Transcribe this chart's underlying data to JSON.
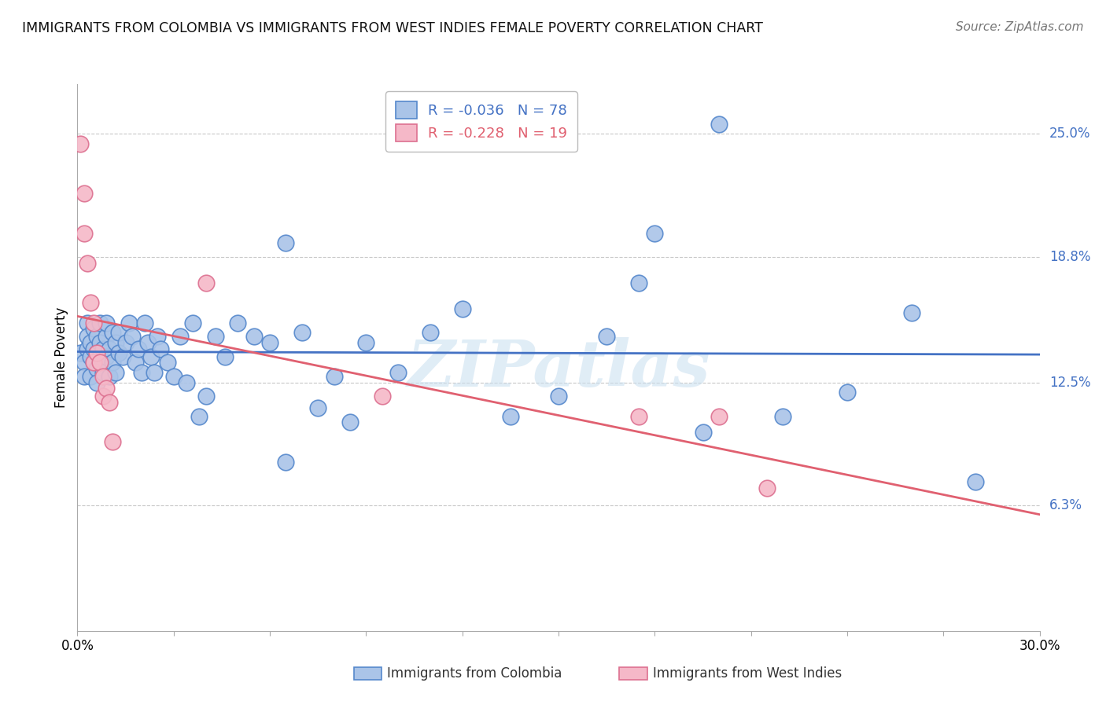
{
  "title": "IMMIGRANTS FROM COLOMBIA VS IMMIGRANTS FROM WEST INDIES FEMALE POVERTY CORRELATION CHART",
  "source": "Source: ZipAtlas.com",
  "ylabel": "Female Poverty",
  "xlim": [
    0.0,
    0.3
  ],
  "ylim": [
    0.0,
    0.275
  ],
  "ytick_right": [
    0.063,
    0.125,
    0.188,
    0.25
  ],
  "ytick_right_labels": [
    "6.3%",
    "12.5%",
    "18.8%",
    "25.0%"
  ],
  "grid_color": "#c8c8c8",
  "background_color": "#ffffff",
  "colombia_color": "#aac4e8",
  "westindies_color": "#f5b8c8",
  "colombia_edge_color": "#5588cc",
  "westindies_edge_color": "#dd7090",
  "colombia_line_color": "#4472c4",
  "westindies_line_color": "#e06070",
  "colombia_R": -0.036,
  "colombia_N": 78,
  "westindies_R": -0.228,
  "westindies_N": 19,
  "watermark": "ZIPatlas",
  "legend_label_colombia": "Immigrants from Colombia",
  "legend_label_westindies": "Immigrants from West Indies",
  "colombia_x": [
    0.001,
    0.002,
    0.002,
    0.003,
    0.003,
    0.003,
    0.004,
    0.004,
    0.004,
    0.005,
    0.005,
    0.005,
    0.006,
    0.006,
    0.006,
    0.006,
    0.007,
    0.007,
    0.007,
    0.008,
    0.008,
    0.009,
    0.009,
    0.009,
    0.01,
    0.01,
    0.011,
    0.011,
    0.012,
    0.012,
    0.013,
    0.013,
    0.014,
    0.015,
    0.016,
    0.017,
    0.018,
    0.019,
    0.02,
    0.021,
    0.022,
    0.023,
    0.024,
    0.025,
    0.026,
    0.028,
    0.03,
    0.032,
    0.034,
    0.036,
    0.038,
    0.04,
    0.043,
    0.046,
    0.05,
    0.055,
    0.06,
    0.065,
    0.07,
    0.075,
    0.08,
    0.09,
    0.1,
    0.11,
    0.12,
    0.135,
    0.15,
    0.165,
    0.18,
    0.2,
    0.22,
    0.24,
    0.26,
    0.28,
    0.175,
    0.195,
    0.085,
    0.065
  ],
  "colombia_y": [
    0.14,
    0.135,
    0.128,
    0.155,
    0.142,
    0.148,
    0.138,
    0.145,
    0.128,
    0.135,
    0.142,
    0.152,
    0.148,
    0.132,
    0.14,
    0.125,
    0.155,
    0.145,
    0.138,
    0.142,
    0.13,
    0.148,
    0.138,
    0.155,
    0.142,
    0.128,
    0.15,
    0.135,
    0.145,
    0.13,
    0.15,
    0.14,
    0.138,
    0.145,
    0.155,
    0.148,
    0.135,
    0.142,
    0.13,
    0.155,
    0.145,
    0.138,
    0.13,
    0.148,
    0.142,
    0.135,
    0.128,
    0.148,
    0.125,
    0.155,
    0.108,
    0.118,
    0.148,
    0.138,
    0.155,
    0.148,
    0.145,
    0.195,
    0.15,
    0.112,
    0.128,
    0.145,
    0.13,
    0.15,
    0.162,
    0.108,
    0.118,
    0.148,
    0.2,
    0.255,
    0.108,
    0.12,
    0.16,
    0.075,
    0.175,
    0.1,
    0.105,
    0.085
  ],
  "westindies_x": [
    0.001,
    0.002,
    0.002,
    0.003,
    0.004,
    0.005,
    0.005,
    0.006,
    0.007,
    0.008,
    0.008,
    0.009,
    0.01,
    0.011,
    0.04,
    0.095,
    0.175,
    0.2,
    0.215
  ],
  "westindies_y": [
    0.245,
    0.22,
    0.2,
    0.185,
    0.165,
    0.155,
    0.135,
    0.14,
    0.135,
    0.128,
    0.118,
    0.122,
    0.115,
    0.095,
    0.175,
    0.118,
    0.108,
    0.108,
    0.072
  ]
}
